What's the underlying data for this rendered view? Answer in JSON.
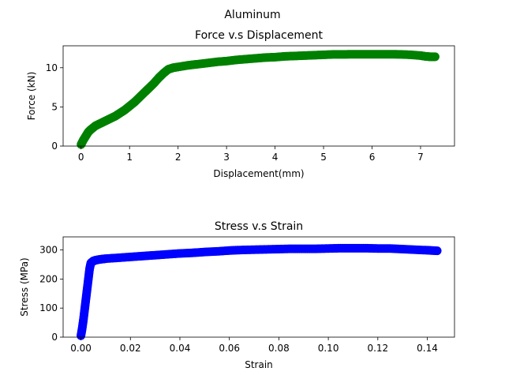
{
  "figure": {
    "suptitle": "Aluminum"
  },
  "chart_data": [
    {
      "type": "scatter",
      "title": "Force v.s Displacement",
      "xlabel": "Displacement(mm)",
      "ylabel": "Force (kN)",
      "xlim": [
        -0.37,
        7.7
      ],
      "ylim": [
        0,
        12.8
      ],
      "xticks": [
        0,
        1,
        2,
        3,
        4,
        5,
        6,
        7
      ],
      "xtick_labels": [
        "0",
        "1",
        "2",
        "3",
        "4",
        "5",
        "6",
        "7"
      ],
      "yticks": [
        0,
        5,
        10
      ],
      "ytick_labels": [
        "0",
        "5",
        "10"
      ],
      "grid": false,
      "series": [
        {
          "color": "#008000",
          "x": [
            0.0,
            0.05,
            0.1,
            0.15,
            0.2,
            0.3,
            0.4,
            0.5,
            0.6,
            0.7,
            0.8,
            0.9,
            1.0,
            1.1,
            1.2,
            1.3,
            1.4,
            1.5,
            1.6,
            1.7,
            1.8,
            1.9,
            2.0,
            2.2,
            2.4,
            2.6,
            2.8,
            3.0,
            3.2,
            3.4,
            3.6,
            3.8,
            4.0,
            4.2,
            4.4,
            4.6,
            4.8,
            5.0,
            5.2,
            5.4,
            5.6,
            5.8,
            6.0,
            6.2,
            6.4,
            6.6,
            6.8,
            7.0,
            7.1,
            7.2,
            7.3
          ],
          "y": [
            0.2,
            0.8,
            1.3,
            1.8,
            2.1,
            2.6,
            2.9,
            3.2,
            3.5,
            3.8,
            4.2,
            4.6,
            5.1,
            5.6,
            6.2,
            6.8,
            7.4,
            8.0,
            8.7,
            9.3,
            9.8,
            10.0,
            10.1,
            10.3,
            10.45,
            10.6,
            10.75,
            10.85,
            11.0,
            11.1,
            11.2,
            11.3,
            11.35,
            11.45,
            11.5,
            11.55,
            11.6,
            11.65,
            11.7,
            11.7,
            11.72,
            11.72,
            11.72,
            11.72,
            11.72,
            11.7,
            11.65,
            11.55,
            11.45,
            11.4,
            11.4
          ]
        }
      ]
    },
    {
      "type": "scatter",
      "title": "Stress v.s Strain",
      "xlabel": "Strain",
      "ylabel": "Stress (MPa)",
      "xlim": [
        -0.0072,
        0.151
      ],
      "ylim": [
        0,
        345
      ],
      "xticks": [
        0,
        0.02,
        0.04,
        0.06,
        0.08,
        0.1,
        0.12,
        0.14
      ],
      "xtick_labels": [
        "0.00",
        "0.02",
        "0.04",
        "0.06",
        "0.08",
        "0.10",
        "0.12",
        "0.14"
      ],
      "yticks": [
        0,
        100,
        200,
        300
      ],
      "ytick_labels": [
        "0",
        "100",
        "200",
        "300"
      ],
      "grid": false,
      "series": [
        {
          "color": "#0000ff",
          "x": [
            0.0,
            0.0005,
            0.001,
            0.0015,
            0.002,
            0.0025,
            0.003,
            0.0035,
            0.004,
            0.005,
            0.006,
            0.008,
            0.01,
            0.015,
            0.02,
            0.025,
            0.03,
            0.035,
            0.04,
            0.045,
            0.05,
            0.055,
            0.06,
            0.065,
            0.07,
            0.075,
            0.08,
            0.085,
            0.09,
            0.095,
            0.1,
            0.105,
            0.11,
            0.115,
            0.12,
            0.125,
            0.13,
            0.135,
            0.14,
            0.144
          ],
          "y": [
            5,
            30,
            60,
            95,
            130,
            165,
            200,
            235,
            255,
            262,
            265,
            268,
            270,
            273,
            276,
            279,
            282,
            285,
            288,
            290,
            293,
            295,
            298,
            300,
            301,
            302,
            303,
            304,
            304,
            304,
            305,
            306,
            306,
            306,
            305,
            305,
            303,
            301,
            299,
            297
          ]
        }
      ]
    }
  ]
}
